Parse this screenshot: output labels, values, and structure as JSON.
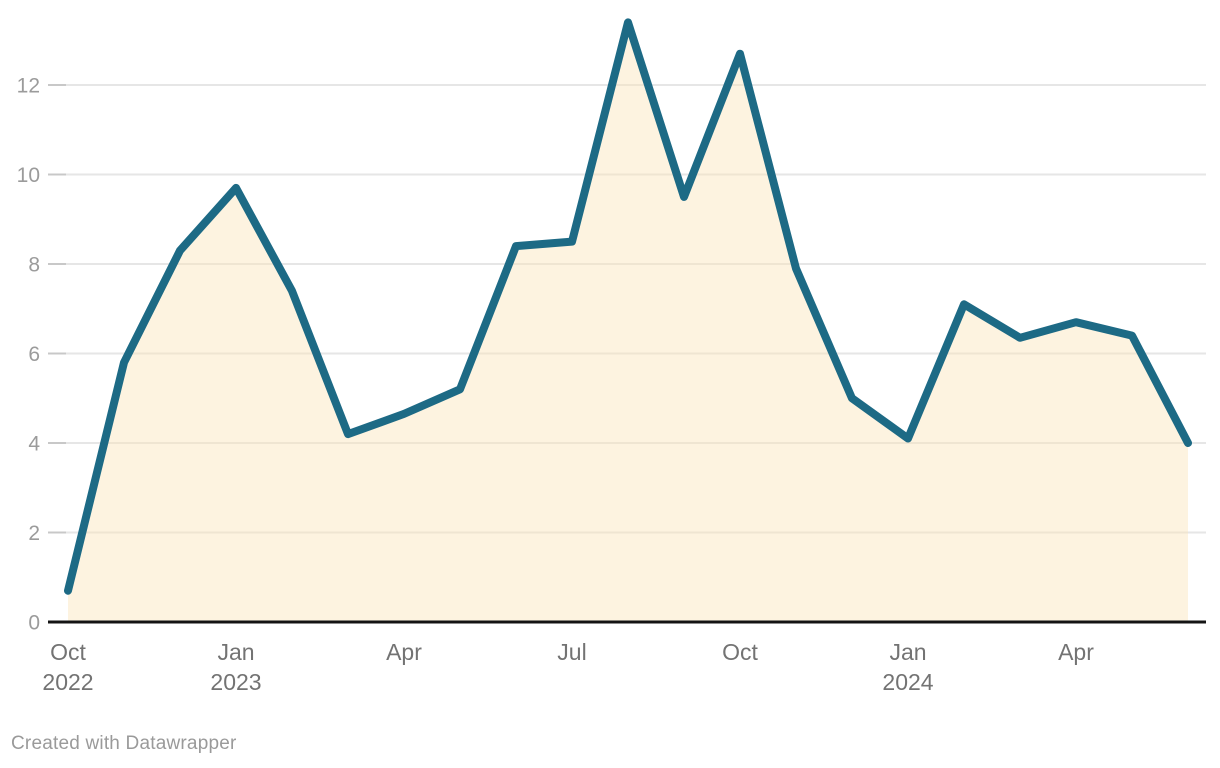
{
  "footer": {
    "credit": "Created with Datawrapper"
  },
  "chart_data": {
    "type": "area",
    "title": "",
    "xlabel": "",
    "ylabel": "",
    "x": [
      "Oct 2022",
      "Nov 2022",
      "Dec 2022",
      "Jan 2023",
      "Feb 2023",
      "Mar 2023",
      "Apr 2023",
      "May 2023",
      "Jun 2023",
      "Jul 2023",
      "Aug 2023",
      "Sep 2023",
      "Oct 2023",
      "Nov 2023",
      "Dec 2023",
      "Jan 2024",
      "Feb 2024",
      "Mar 2024",
      "Apr 2024",
      "May 2024",
      "Jun 2024"
    ],
    "values": [
      0.7,
      5.8,
      8.3,
      9.7,
      7.4,
      4.2,
      4.65,
      5.2,
      8.4,
      8.5,
      13.4,
      9.5,
      12.7,
      7.9,
      5.0,
      4.1,
      7.1,
      6.35,
      6.7,
      6.4,
      4.0
    ],
    "x_tick_labels": [
      {
        "index": 0,
        "month": "Oct",
        "year": "2022"
      },
      {
        "index": 3,
        "month": "Jan",
        "year": "2023"
      },
      {
        "index": 6,
        "month": "Apr",
        "year": ""
      },
      {
        "index": 9,
        "month": "Jul",
        "year": ""
      },
      {
        "index": 12,
        "month": "Oct",
        "year": ""
      },
      {
        "index": 15,
        "month": "Jan",
        "year": "2024"
      },
      {
        "index": 18,
        "month": "Apr",
        "year": ""
      }
    ],
    "y_ticks": [
      0,
      2,
      4,
      6,
      8,
      10,
      12
    ],
    "ylim": [
      0,
      13.9
    ],
    "grid": true,
    "legend": "none",
    "colors": {
      "line": "#1d6a85",
      "fill": "rgba(250,228,186,0.45)",
      "grid": "#e6e6e6",
      "tick": "#c8c8c8",
      "axis": "#141414",
      "y_label": "#9b9b9b",
      "x_label": "#737373",
      "credit": "#9a9a9a"
    }
  }
}
